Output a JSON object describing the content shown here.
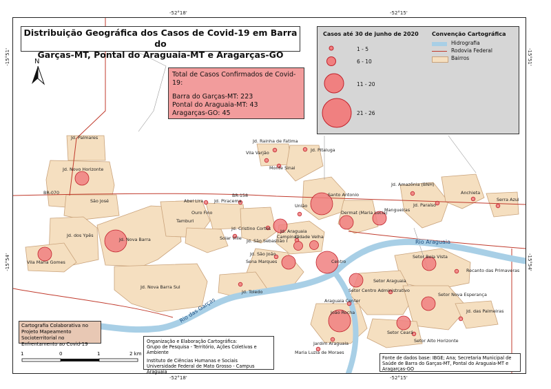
{
  "title": {
    "line1": "Distribuição Geográfica dos Casos de Covid-19 em Barra do",
    "line2": "Garças-MT, Pontal do Araguaia-MT e Aragarças-GO"
  },
  "totals": {
    "heading": "Total de Casos Confirmados de Covid-19:",
    "lines": [
      "Barra do Garças-MT: 223",
      "Pontal do Araguaia-MT: 43",
      "Aragarças-GO: 45"
    ]
  },
  "legend": {
    "cases_title": "Casos até 30 de junho de 2020",
    "classes": [
      "1 - 5",
      "6 - 10",
      "11 - 20",
      "21 - 26"
    ],
    "convention_title": "Convenção Cartográfica",
    "convention_items": [
      "Hidrografia",
      "Rodovia Federal",
      "Bairros"
    ]
  },
  "coordinates": {
    "top": [
      "-52°18'",
      "-52°15'"
    ],
    "bottom": [
      "-52°18'",
      "-52°15'"
    ],
    "left": [
      "-15°51'",
      "-15°54'"
    ],
    "right": [
      "-15°51'",
      "-15°54'"
    ]
  },
  "north_arrow": "N",
  "scale": {
    "labels": [
      "1",
      "0",
      "1",
      "2 km"
    ]
  },
  "collaboration": "Cartografia Colaborativa no Projeto Mapeamento Socioterritorial no Enfrentamento ao Covid-19",
  "organization": [
    "Organização e Elaboração Cartográfica:",
    "Grupo de Pesquisa - Território, Ações Coletivas e Ambiente",
    "Instituto de Ciências Humanas e Sociais",
    "Universidade Federal de Mato Grosso - Campus Araguaia"
  ],
  "source": "Fonte de dados base: IBGE; Ana; Secretaria Municipal de Saúde de Barra do Garças-MT, Pontal do Araguaia-MT e Aragarças-GO",
  "road_labels": [
    "BR-070",
    "BR-158"
  ],
  "rivers": [
    "Rio Araguaia",
    "Rio das Garças"
  ],
  "colors": {
    "neighborhood": "#f5dfc0",
    "case_circle": "#f08080",
    "case_stroke": "#c0202a",
    "river": "#a8cfe6",
    "road": "#c0392b"
  },
  "neighborhoods": [
    {
      "name": "Jd. Palmares",
      "cases_class": null
    },
    {
      "name": "Jd. Novo Horizonte",
      "cases_class": "11 - 20"
    },
    {
      "name": "São José",
      "cases_class": null
    },
    {
      "name": "Jd. dos Ypês",
      "cases_class": null
    },
    {
      "name": "Jd. Nova Barra",
      "cases_class": "21 - 26"
    },
    {
      "name": "Vila Maria Gomes",
      "cases_class": "11 - 20"
    },
    {
      "name": "Jd. Nova Barra Sul",
      "cases_class": null
    },
    {
      "name": "Jd. Rainha de Fatima",
      "cases_class": "1 - 5"
    },
    {
      "name": "Vila Varjão",
      "cases_class": "1 - 5"
    },
    {
      "name": "Jd. Pitaluga",
      "cases_class": "1 - 5"
    },
    {
      "name": "Monte Sinai",
      "cases_class": "1 - 5"
    },
    {
      "name": "Abel Lira",
      "cases_class": "1 - 5"
    },
    {
      "name": "Jd. Piracema",
      "cases_class": "1 - 5"
    },
    {
      "name": "Ouro Fino",
      "cases_class": null
    },
    {
      "name": "Tamburi",
      "cases_class": null
    },
    {
      "name": "Jd. Cristino Cortes",
      "cases_class": "1 - 5"
    },
    {
      "name": "Solar Ville",
      "cases_class": "1 - 5"
    },
    {
      "name": "Jd. Araguaia",
      "cases_class": "11 - 20"
    },
    {
      "name": "Jd. São Sebastião I",
      "cases_class": "1 - 5"
    },
    {
      "name": "Campinas",
      "cases_class": "6 - 10"
    },
    {
      "name": "Cidade Velha",
      "cases_class": "6 - 10"
    },
    {
      "name": "Jd. São João",
      "cases_class": "1 - 5"
    },
    {
      "name": "Sena Marques",
      "cases_class": "11 - 20"
    },
    {
      "name": "Jd. Toledo",
      "cases_class": "1 - 5"
    },
    {
      "name": "União",
      "cases_class": "1 - 5"
    },
    {
      "name": "Santo Antonio",
      "cases_class": "21 - 26"
    },
    {
      "name": "Dermat (Maria Lucia)",
      "cases_class": "11 - 20"
    },
    {
      "name": "Mangueiras",
      "cases_class": "11 - 20"
    },
    {
      "name": "Centro",
      "cases_class": "21 - 26"
    },
    {
      "name": "Jd. Amazônia (BNH)",
      "cases_class": "1 - 5"
    },
    {
      "name": "Jd. Paraíso",
      "cases_class": "1 - 5"
    },
    {
      "name": "Anchieta",
      "cases_class": "1 - 5"
    },
    {
      "name": "Serra Azul",
      "cases_class": "1 - 5"
    },
    {
      "name": "Setor Bela Vista",
      "cases_class": "11 - 20"
    },
    {
      "name": "Recanto das Primaveras",
      "cases_class": "1 - 5"
    },
    {
      "name": "Setor Araguaia",
      "cases_class": "11 - 20"
    },
    {
      "name": "Setor Centro Administrativo",
      "cases_class": "1 - 5"
    },
    {
      "name": "Araguaia Center",
      "cases_class": "1 - 5"
    },
    {
      "name": "Setor Nova Esperança",
      "cases_class": "11 - 20"
    },
    {
      "name": "João Rocha",
      "cases_class": "21 - 26"
    },
    {
      "name": "Jd. das Palmeiras",
      "cases_class": "1 - 5"
    },
    {
      "name": "Setor Ceará",
      "cases_class": "11 - 20"
    },
    {
      "name": "Setor Alto Horizonte",
      "cases_class": "1 - 5"
    },
    {
      "name": "Jardim Araguaia",
      "cases_class": "1 - 5"
    },
    {
      "name": "Maria Luzia de Moraes",
      "cases_class": "1 - 5"
    }
  ]
}
